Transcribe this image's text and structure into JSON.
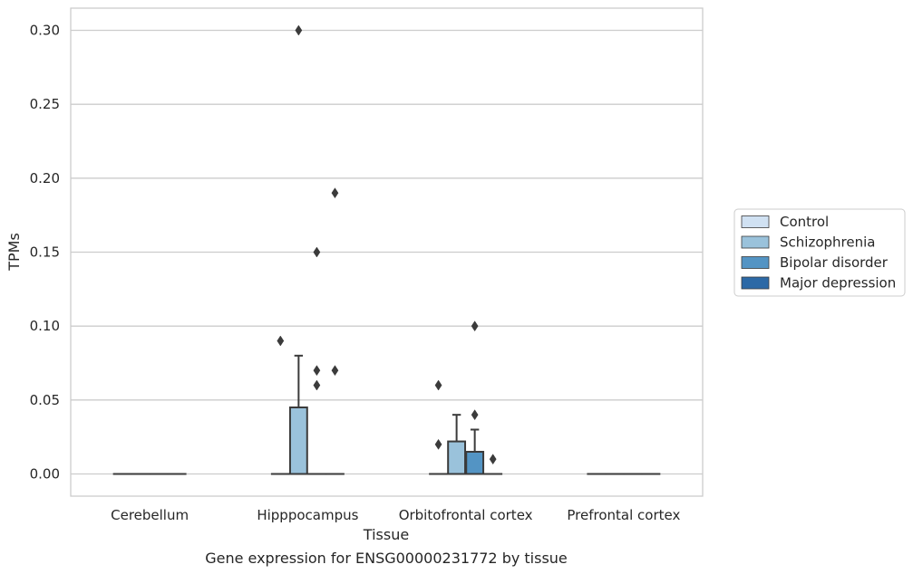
{
  "chart_data": {
    "type": "box",
    "title": "",
    "caption": "Gene expression for ENSG00000231772 by tissue",
    "xlabel": "Tissue",
    "ylabel": "TPMs",
    "ylim": [
      -0.015,
      0.315
    ],
    "yticks": [
      "0.00",
      "0.05",
      "0.10",
      "0.15",
      "0.20",
      "0.25",
      "0.30"
    ],
    "ytick_values": [
      0,
      0.05,
      0.1,
      0.15,
      0.2,
      0.25,
      0.3
    ],
    "grid": "horizontal",
    "legend_position": "right",
    "categories": [
      "Cerebellum",
      "Hipppocampus",
      "Orbitofrontal cortex",
      "Prefrontal cortex"
    ],
    "series": [
      {
        "name": "Control",
        "color": "#d0e1f2",
        "boxes": [
          {
            "q1": 0,
            "median": 0,
            "q3": 0,
            "whisker_low": 0,
            "whisker_high": 0,
            "outliers": []
          },
          {
            "q1": 0,
            "median": 0,
            "q3": 0,
            "whisker_low": 0,
            "whisker_high": 0,
            "outliers": [
              0.09
            ]
          },
          {
            "q1": 0,
            "median": 0,
            "q3": 0,
            "whisker_low": 0,
            "whisker_high": 0,
            "outliers": [
              0.06,
              0.02
            ]
          },
          {
            "q1": 0,
            "median": 0,
            "q3": 0,
            "whisker_low": 0,
            "whisker_high": 0,
            "outliers": []
          }
        ]
      },
      {
        "name": "Schizophrenia",
        "color": "#9ac2db",
        "boxes": [
          {
            "q1": 0,
            "median": 0,
            "q3": 0,
            "whisker_low": 0,
            "whisker_high": 0,
            "outliers": []
          },
          {
            "q1": 0,
            "median": 0,
            "q3": 0.045,
            "whisker_low": 0,
            "whisker_high": 0.08,
            "outliers": [
              0.3
            ]
          },
          {
            "q1": 0,
            "median": 0,
            "q3": 0.022,
            "whisker_low": 0,
            "whisker_high": 0.04,
            "outliers": []
          },
          {
            "q1": 0,
            "median": 0,
            "q3": 0,
            "whisker_low": 0,
            "whisker_high": 0,
            "outliers": []
          }
        ]
      },
      {
        "name": "Bipolar disorder",
        "color": "#5394c4",
        "boxes": [
          {
            "q1": 0,
            "median": 0,
            "q3": 0,
            "whisker_low": 0,
            "whisker_high": 0,
            "outliers": []
          },
          {
            "q1": 0,
            "median": 0,
            "q3": 0,
            "whisker_low": 0,
            "whisker_high": 0,
            "outliers": [
              0.15,
              0.07,
              0.06
            ]
          },
          {
            "q1": 0,
            "median": 0,
            "q3": 0.015,
            "whisker_low": 0,
            "whisker_high": 0.03,
            "outliers": [
              0.1,
              0.04
            ]
          },
          {
            "q1": 0,
            "median": 0,
            "q3": 0,
            "whisker_low": 0,
            "whisker_high": 0,
            "outliers": []
          }
        ]
      },
      {
        "name": "Major depression",
        "color": "#2c69a6",
        "boxes": [
          {
            "q1": 0,
            "median": 0,
            "q3": 0,
            "whisker_low": 0,
            "whisker_high": 0,
            "outliers": []
          },
          {
            "q1": 0,
            "median": 0,
            "q3": 0,
            "whisker_low": 0,
            "whisker_high": 0,
            "outliers": [
              0.19,
              0.07
            ]
          },
          {
            "q1": 0,
            "median": 0,
            "q3": 0,
            "whisker_low": 0,
            "whisker_high": 0,
            "outliers": [
              0.01
            ]
          },
          {
            "q1": 0,
            "median": 0,
            "q3": 0,
            "whisker_low": 0,
            "whisker_high": 0,
            "outliers": []
          }
        ]
      }
    ]
  }
}
